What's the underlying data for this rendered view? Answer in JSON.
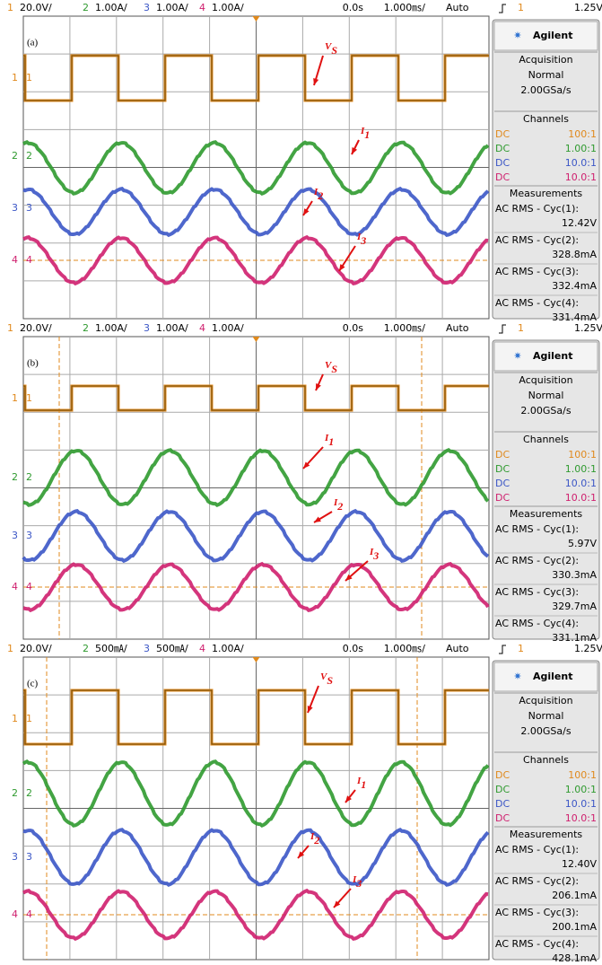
{
  "panels": [
    {
      "label": "(a)",
      "header": {
        "ch1": "1",
        "ch1_scale": "20.0V/",
        "ch2": "2",
        "ch2_scale": "1.00A/",
        "ch3": "3",
        "ch3_scale": "1.00A/",
        "ch4": "4",
        "ch4_scale": "1.00A/",
        "time": "0.0s",
        "timebase": "1.000㎳/",
        "mode": "Auto",
        "trig_ch": "1",
        "trig_level": "1.25V"
      },
      "markers": [
        "1",
        "2",
        "3",
        "4"
      ],
      "annotations": [
        {
          "text": "V",
          "sub": "S"
        },
        {
          "text": "I",
          "sub": "1"
        },
        {
          "text": "I",
          "sub": "2"
        },
        {
          "text": "I",
          "sub": "3"
        }
      ],
      "sidebar": {
        "brand": "Agilent",
        "acquisition": "Acquisition",
        "acq_mode": "Normal",
        "rate": "2.00GSa/s",
        "channels": "Channels",
        "channel_rows": [
          {
            "coupling": "DC",
            "ratio": "100:1"
          },
          {
            "coupling": "DC",
            "ratio": "1.00:1"
          },
          {
            "coupling": "DC",
            "ratio": "10.0:1"
          },
          {
            "coupling": "DC",
            "ratio": "10.0:1"
          }
        ],
        "measurements": "Measurements",
        "measurement_rows": [
          {
            "label": "AC RMS - Cyc(1):",
            "value": "12.42V"
          },
          {
            "label": "AC RMS - Cyc(2):",
            "value": "328.8mA"
          },
          {
            "label": "AC RMS - Cyc(3):",
            "value": "332.4mA"
          },
          {
            "label": "AC RMS - Cyc(4):",
            "value": "331.4mA"
          }
        ]
      }
    },
    {
      "label": "(b)",
      "header": {
        "ch1": "1",
        "ch1_scale": "20.0V/",
        "ch2": "2",
        "ch2_scale": "1.00A/",
        "ch3": "3",
        "ch3_scale": "1.00A/",
        "ch4": "4",
        "ch4_scale": "1.00A/",
        "time": "0.0s",
        "timebase": "1.000㎳/",
        "mode": "Auto",
        "trig_ch": "1",
        "trig_level": "1.25V"
      },
      "markers": [
        "1",
        "2",
        "3",
        "4"
      ],
      "annotations": [
        {
          "text": "V",
          "sub": "S"
        },
        {
          "text": "I",
          "sub": "1"
        },
        {
          "text": "I",
          "sub": "2"
        },
        {
          "text": "I",
          "sub": "3"
        }
      ],
      "sidebar": {
        "brand": "Agilent",
        "acquisition": "Acquisition",
        "acq_mode": "Normal",
        "rate": "2.00GSa/s",
        "channels": "Channels",
        "channel_rows": [
          {
            "coupling": "DC",
            "ratio": "100:1"
          },
          {
            "coupling": "DC",
            "ratio": "1.00:1"
          },
          {
            "coupling": "DC",
            "ratio": "10.0:1"
          },
          {
            "coupling": "DC",
            "ratio": "10.0:1"
          }
        ],
        "measurements": "Measurements",
        "measurement_rows": [
          {
            "label": "AC RMS - Cyc(1):",
            "value": "5.97V"
          },
          {
            "label": "AC RMS - Cyc(2):",
            "value": "330.3mA"
          },
          {
            "label": "AC RMS - Cyc(3):",
            "value": "329.7mA"
          },
          {
            "label": "AC RMS - Cyc(4):",
            "value": "331.1mA"
          }
        ]
      }
    },
    {
      "label": "(c)",
      "header": {
        "ch1": "1",
        "ch1_scale": "20.0V/",
        "ch2": "2",
        "ch2_scale": "500㎃/",
        "ch3": "3",
        "ch3_scale": "500㎃/",
        "ch4": "4",
        "ch4_scale": "1.00A/",
        "time": "0.0s",
        "timebase": "1.000㎳/",
        "mode": "Auto",
        "trig_ch": "1",
        "trig_level": "1.25V"
      },
      "markers": [
        "1",
        "2",
        "3",
        "4"
      ],
      "annotations": [
        {
          "text": "V",
          "sub": "S"
        },
        {
          "text": "I",
          "sub": "1"
        },
        {
          "text": "I",
          "sub": "2"
        },
        {
          "text": "I",
          "sub": "3"
        }
      ],
      "sidebar": {
        "brand": "Agilent",
        "acquisition": "Acquisition",
        "acq_mode": "Normal",
        "rate": "2.00GSa/s",
        "channels": "Channels",
        "channel_rows": [
          {
            "coupling": "DC",
            "ratio": "100:1"
          },
          {
            "coupling": "DC",
            "ratio": "1.00:1"
          },
          {
            "coupling": "DC",
            "ratio": "10.0:1"
          },
          {
            "coupling": "DC",
            "ratio": "10.0:1"
          }
        ],
        "measurements": "Measurements",
        "measurement_rows": [
          {
            "label": "AC RMS - Cyc(1):",
            "value": "12.40V"
          },
          {
            "label": "AC RMS - Cyc(2):",
            "value": "206.1mA"
          },
          {
            "label": "AC RMS - Cyc(3):",
            "value": "200.1mA"
          },
          {
            "label": "AC RMS - Cyc(4):",
            "value": "428.1mA"
          }
        ]
      }
    }
  ]
}
